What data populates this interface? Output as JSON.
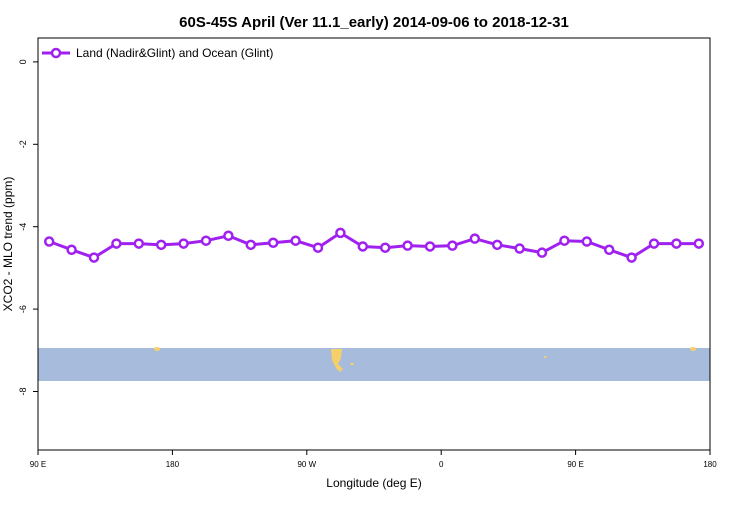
{
  "chart_data": {
    "type": "line",
    "title": "60S-45S April (Ver 11.1_early)   2014-09-06 to 2018-12-31",
    "x_label": "Longitude (deg E)",
    "y_label": "XCO2 - MLO trend (ppm)",
    "x": [
      97.5,
      112.5,
      127.5,
      142.5,
      157.5,
      172.5,
      187.5,
      202.5,
      217.5,
      232.5,
      247.5,
      262.5,
      277.5,
      292.5,
      307.5,
      322.5,
      337.5,
      352.5,
      367.5,
      382.5,
      397.5,
      412.5,
      427.5,
      442.5,
      457.5,
      472.5,
      487.5,
      502.5,
      517.5,
      532.5
    ],
    "series": [
      {
        "name": "Land (Nadir&Glint) and Ocean (Glint)",
        "color": "#a020f0",
        "values": [
          -4.36,
          -4.56,
          -4.75,
          -4.41,
          -4.41,
          -4.44,
          -4.41,
          -4.34,
          -4.22,
          -4.44,
          -4.39,
          -4.34,
          -4.51,
          -4.15,
          -4.48,
          -4.51,
          -4.46,
          -4.48,
          -4.46,
          -4.29,
          -4.44,
          -4.53,
          -4.63,
          -4.34,
          -4.36,
          -4.56,
          -4.75,
          -4.41,
          -4.41,
          -4.41
        ]
      }
    ],
    "xlim": [
      90,
      540
    ],
    "xticks": [
      {
        "value": 90,
        "label": "90 E"
      },
      {
        "value": 180,
        "label": "180"
      },
      {
        "value": 270,
        "label": "90 W"
      },
      {
        "value": 360,
        "label": "0"
      },
      {
        "value": 450,
        "label": "90 E"
      },
      {
        "value": 540,
        "label": "180"
      }
    ],
    "ylim": [
      -9.42,
      0.58
    ],
    "yticks": [
      0,
      -2,
      -4,
      -6,
      -8
    ],
    "legend": "top-left"
  }
}
